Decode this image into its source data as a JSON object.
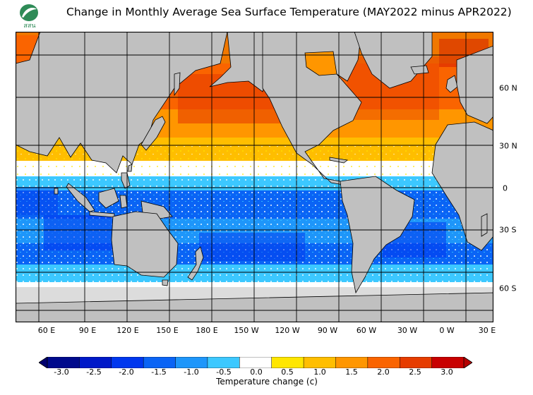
{
  "header": {
    "title": "Change in Monthly Average Sea Surface Temperature (MAY2022 minus APR2022)",
    "logo_text": "สสน"
  },
  "map": {
    "longitude_labels": [
      "60 E",
      "90 E",
      "120 E",
      "150 E",
      "180 E",
      "150 W",
      "120 W",
      "90 W",
      "60 W",
      "30 W",
      "0 W",
      "30 E"
    ],
    "latitude_labels": [
      "60 N",
      "30 N",
      "0",
      "30 S",
      "60 S"
    ],
    "land_color": "#c0c0c0",
    "ice_color": "#dcdcdc",
    "grid_color": "#000000"
  },
  "colorbar": {
    "title": "Temperature change  (c)",
    "tick_labels": [
      "-3.0",
      "-2.5",
      "-2.0",
      "-1.5",
      "-1.0",
      "-0.5",
      "0.0",
      "0.5",
      "1.0",
      "1.5",
      "2.0",
      "2.5",
      "3.0"
    ],
    "colors": [
      "#000a8c",
      "#0019c8",
      "#0037ee",
      "#0a64f5",
      "#1e96fa",
      "#3cc8ff",
      "#ffffff",
      "#ffe600",
      "#ffbe00",
      "#ff9600",
      "#fa6400",
      "#e63c00",
      "#c80000"
    ],
    "min_arrow_color": "#00006e",
    "max_arrow_color": "#b40000"
  }
}
